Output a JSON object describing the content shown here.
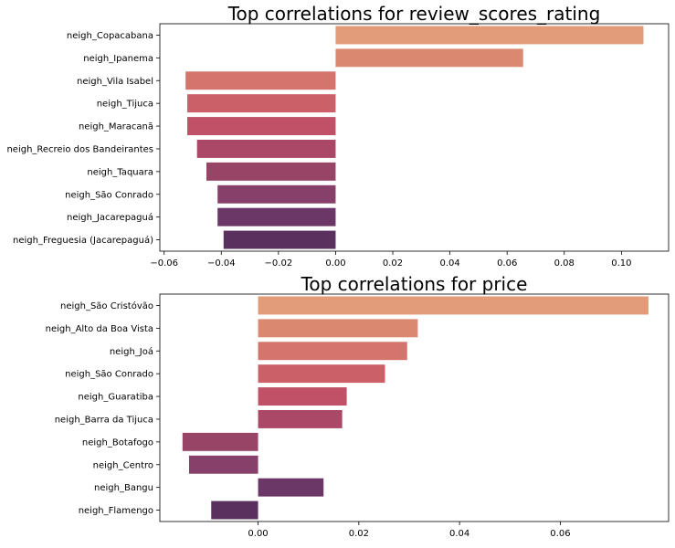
{
  "chart_data": [
    {
      "type": "bar",
      "orientation": "horizontal",
      "title": "Top correlations for review_scores_rating",
      "categories": [
        "neigh_Copacabana",
        "neigh_Ipanema",
        "neigh_Vila Isabel",
        "neigh_Tijuca",
        "neigh_Maracanã",
        "neigh_Recreio dos Bandeirantes",
        "neigh_Taquara",
        "neigh_São Conrado",
        "neigh_Jacarepaguá",
        "neigh_Freguesia (Jacarepaguá)"
      ],
      "values": [
        0.1077,
        0.0656,
        -0.0525,
        -0.0519,
        -0.0519,
        -0.0485,
        -0.0452,
        -0.0413,
        -0.0413,
        -0.0392
      ],
      "xlim": [
        -0.0615,
        0.1165
      ],
      "xticks": [
        -0.06,
        -0.04,
        -0.02,
        0.0,
        0.02,
        0.04,
        0.06,
        0.08,
        0.1
      ],
      "xtick_labels": [
        "−0.06",
        "−0.04",
        "−0.02",
        "0.00",
        "0.02",
        "0.04",
        "0.06",
        "0.08",
        "0.10"
      ],
      "colors": [
        "#e29c7a",
        "#db8871",
        "#d4746c",
        "#cb6068",
        "#c05167",
        "#ab4867",
        "#984466",
        "#86406a",
        "#6b3766",
        "#5a305e"
      ],
      "grid": false,
      "legend": "none"
    },
    {
      "type": "bar",
      "orientation": "horizontal",
      "title": "Top correlations for price",
      "categories": [
        "neigh_São Cristóvão",
        "neigh_Alto da Boa Vista",
        "neigh_Joá",
        "neigh_São Conrado",
        "neigh_Guaratiba",
        "neigh_Barra da Tijuca",
        "neigh_Botafogo",
        "neigh_Centro",
        "neigh_Bangu",
        "neigh_Flamengo"
      ],
      "values": [
        0.0775,
        0.0317,
        0.0296,
        0.0252,
        0.0176,
        0.0167,
        -0.015,
        -0.0137,
        0.013,
        -0.0093
      ],
      "xlim": [
        -0.0195,
        0.0815
      ],
      "xticks": [
        0.0,
        0.02,
        0.04,
        0.06
      ],
      "xtick_labels": [
        "0.00",
        "0.02",
        "0.04",
        "0.06"
      ],
      "colors": [
        "#e29c7a",
        "#db8871",
        "#d4746c",
        "#cb6068",
        "#c05167",
        "#ab4867",
        "#984466",
        "#86406a",
        "#6b3766",
        "#5a305e"
      ],
      "grid": false,
      "legend": "none"
    }
  ]
}
